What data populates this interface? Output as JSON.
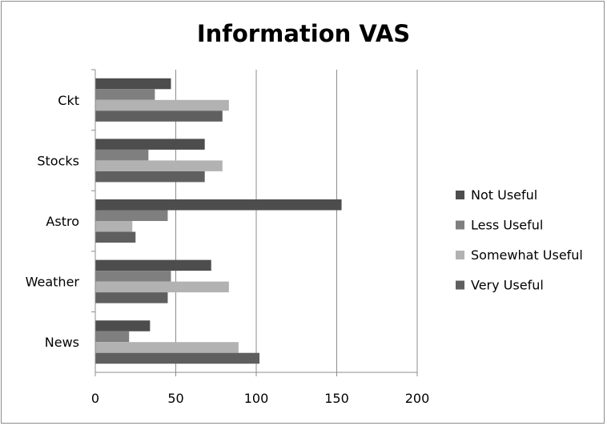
{
  "chart_data": {
    "type": "bar",
    "orientation": "horizontal",
    "title": "Information VAS",
    "categories": [
      "News",
      "Weather",
      "Astro",
      "Stocks",
      "Ckt"
    ],
    "series": [
      {
        "name": "Not Useful",
        "color": "#4d4d4d",
        "values": [
          34,
          72,
          153,
          68,
          47
        ]
      },
      {
        "name": "Less Useful",
        "color": "#7f7f7f",
        "values": [
          21,
          47,
          45,
          33,
          37
        ]
      },
      {
        "name": "Somewhat Useful",
        "color": "#b2b2b2",
        "values": [
          89,
          83,
          23,
          79,
          83
        ]
      },
      {
        "name": "Very Useful",
        "color": "#5f5f5f",
        "values": [
          102,
          45,
          25,
          68,
          79
        ]
      }
    ],
    "xlim": [
      0,
      200
    ],
    "xticks": [
      0,
      50,
      100,
      150,
      200
    ],
    "grid": true,
    "legend": "right"
  }
}
